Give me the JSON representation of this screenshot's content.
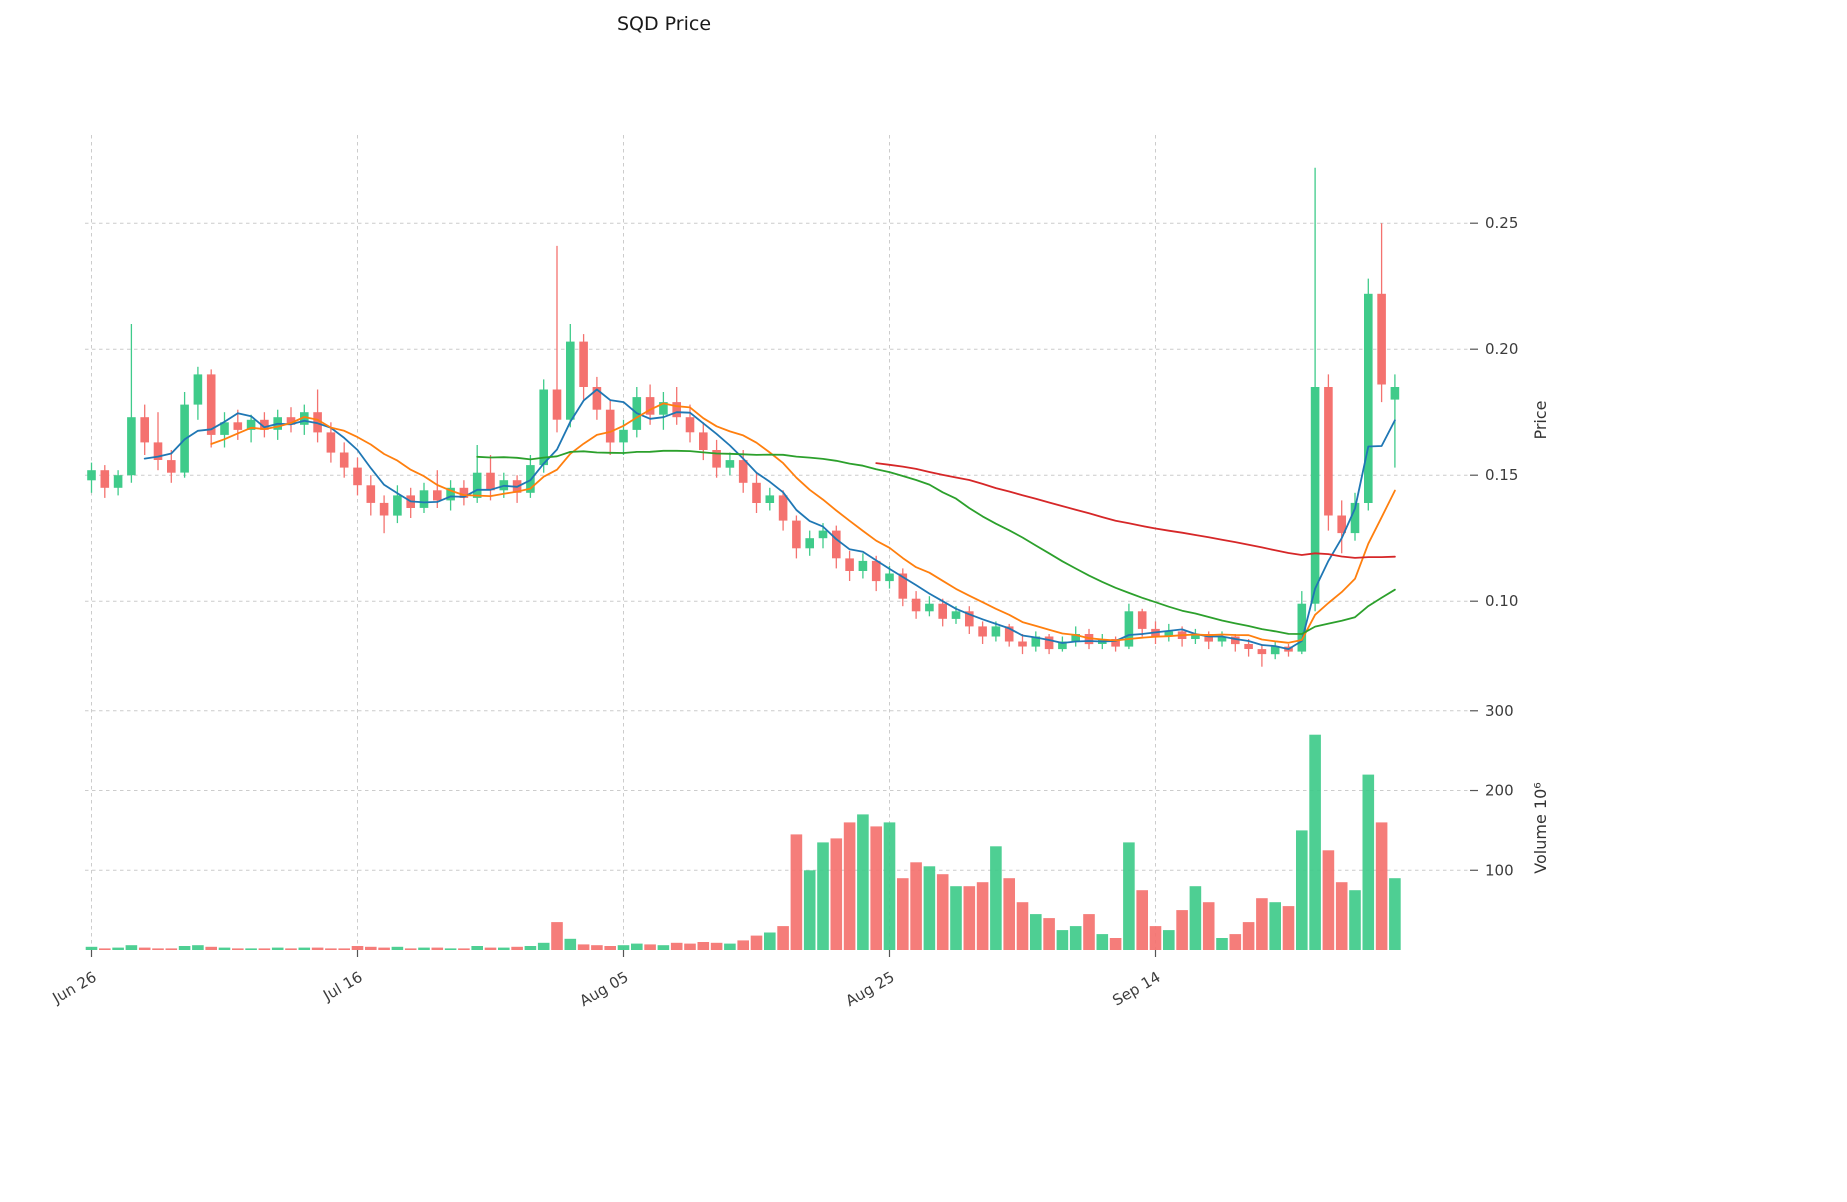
{
  "chart_data": {
    "type": "candlestick",
    "title": "SQD Price",
    "ylabel_price": "Price",
    "ylabel_volume": "Volume  10⁶",
    "volume_units": "millions",
    "grid": "dashed",
    "legend": "none",
    "up_color": "#3fcb8a",
    "down_color": "#f4726f",
    "price_ylim": [
      0.06,
      0.285
    ],
    "volume_ylim": [
      0,
      306
    ],
    "price_ticks": [
      {
        "value": 0.1,
        "label": "0.10"
      },
      {
        "value": 0.15,
        "label": "0.15"
      },
      {
        "value": 0.2,
        "label": "0.20"
      },
      {
        "value": 0.25,
        "label": "0.25"
      }
    ],
    "volume_ticks": [
      {
        "value": 100,
        "label": "100"
      },
      {
        "value": 200,
        "label": "200"
      },
      {
        "value": 300,
        "label": "300"
      }
    ],
    "x_ticks": [
      {
        "index": 0,
        "label": "Jun 26"
      },
      {
        "index": 20,
        "label": "Jul 16"
      },
      {
        "index": 40,
        "label": "Aug 05"
      },
      {
        "index": 60,
        "label": "Aug 25"
      },
      {
        "index": 80,
        "label": "Sep 14"
      }
    ],
    "ma_lines": [
      {
        "period": 5,
        "color": "#1f77b4"
      },
      {
        "period": 10,
        "color": "#ff7f0e"
      },
      {
        "period": 30,
        "color": "#2ca02c"
      },
      {
        "period": 60,
        "color": "#d62728"
      }
    ],
    "columns": [
      "open",
      "high",
      "low",
      "close"
    ],
    "candles": [
      [
        0.148,
        0.155,
        0.143,
        0.152
      ],
      [
        0.152,
        0.154,
        0.141,
        0.145
      ],
      [
        0.145,
        0.152,
        0.142,
        0.15
      ],
      [
        0.15,
        0.21,
        0.147,
        0.173
      ],
      [
        0.173,
        0.178,
        0.158,
        0.163
      ],
      [
        0.163,
        0.175,
        0.152,
        0.156
      ],
      [
        0.156,
        0.16,
        0.147,
        0.151
      ],
      [
        0.151,
        0.183,
        0.149,
        0.178
      ],
      [
        0.178,
        0.193,
        0.172,
        0.19
      ],
      [
        0.19,
        0.192,
        0.161,
        0.166
      ],
      [
        0.166,
        0.175,
        0.161,
        0.171
      ],
      [
        0.171,
        0.176,
        0.164,
        0.168
      ],
      [
        0.168,
        0.174,
        0.163,
        0.172
      ],
      [
        0.172,
        0.175,
        0.165,
        0.168
      ],
      [
        0.168,
        0.176,
        0.164,
        0.173
      ],
      [
        0.173,
        0.177,
        0.167,
        0.17
      ],
      [
        0.17,
        0.178,
        0.166,
        0.175
      ],
      [
        0.175,
        0.184,
        0.163,
        0.167
      ],
      [
        0.167,
        0.171,
        0.155,
        0.159
      ],
      [
        0.159,
        0.163,
        0.149,
        0.153
      ],
      [
        0.153,
        0.157,
        0.142,
        0.146
      ],
      [
        0.146,
        0.15,
        0.134,
        0.139
      ],
      [
        0.139,
        0.142,
        0.127,
        0.134
      ],
      [
        0.134,
        0.146,
        0.131,
        0.142
      ],
      [
        0.142,
        0.145,
        0.133,
        0.137
      ],
      [
        0.137,
        0.147,
        0.135,
        0.144
      ],
      [
        0.144,
        0.152,
        0.137,
        0.14
      ],
      [
        0.14,
        0.148,
        0.136,
        0.145
      ],
      [
        0.145,
        0.148,
        0.138,
        0.141
      ],
      [
        0.141,
        0.162,
        0.139,
        0.151
      ],
      [
        0.151,
        0.158,
        0.14,
        0.144
      ],
      [
        0.144,
        0.151,
        0.141,
        0.148
      ],
      [
        0.148,
        0.15,
        0.139,
        0.143
      ],
      [
        0.143,
        0.158,
        0.141,
        0.154
      ],
      [
        0.154,
        0.188,
        0.151,
        0.184
      ],
      [
        0.184,
        0.241,
        0.167,
        0.172
      ],
      [
        0.172,
        0.21,
        0.169,
        0.203
      ],
      [
        0.203,
        0.206,
        0.18,
        0.185
      ],
      [
        0.185,
        0.189,
        0.172,
        0.176
      ],
      [
        0.176,
        0.18,
        0.158,
        0.163
      ],
      [
        0.163,
        0.172,
        0.158,
        0.168
      ],
      [
        0.168,
        0.185,
        0.165,
        0.181
      ],
      [
        0.181,
        0.186,
        0.17,
        0.174
      ],
      [
        0.174,
        0.183,
        0.168,
        0.179
      ],
      [
        0.179,
        0.185,
        0.17,
        0.173
      ],
      [
        0.173,
        0.178,
        0.163,
        0.167
      ],
      [
        0.167,
        0.171,
        0.156,
        0.16
      ],
      [
        0.16,
        0.164,
        0.149,
        0.153
      ],
      [
        0.153,
        0.159,
        0.15,
        0.156
      ],
      [
        0.156,
        0.16,
        0.143,
        0.147
      ],
      [
        0.147,
        0.151,
        0.135,
        0.139
      ],
      [
        0.139,
        0.145,
        0.136,
        0.142
      ],
      [
        0.142,
        0.144,
        0.128,
        0.132
      ],
      [
        0.132,
        0.134,
        0.117,
        0.121
      ],
      [
        0.121,
        0.128,
        0.118,
        0.125
      ],
      [
        0.125,
        0.131,
        0.121,
        0.128
      ],
      [
        0.128,
        0.13,
        0.113,
        0.117
      ],
      [
        0.117,
        0.12,
        0.108,
        0.112
      ],
      [
        0.112,
        0.119,
        0.109,
        0.116
      ],
      [
        0.116,
        0.118,
        0.104,
        0.108
      ],
      [
        0.108,
        0.114,
        0.105,
        0.111
      ],
      [
        0.111,
        0.113,
        0.098,
        0.101
      ],
      [
        0.101,
        0.104,
        0.093,
        0.096
      ],
      [
        0.096,
        0.102,
        0.094,
        0.099
      ],
      [
        0.099,
        0.101,
        0.09,
        0.093
      ],
      [
        0.093,
        0.098,
        0.091,
        0.096
      ],
      [
        0.096,
        0.098,
        0.087,
        0.09
      ],
      [
        0.09,
        0.092,
        0.083,
        0.086
      ],
      [
        0.086,
        0.092,
        0.084,
        0.09
      ],
      [
        0.09,
        0.091,
        0.082,
        0.084
      ],
      [
        0.084,
        0.087,
        0.079,
        0.082
      ],
      [
        0.082,
        0.088,
        0.08,
        0.086
      ],
      [
        0.086,
        0.087,
        0.079,
        0.081
      ],
      [
        0.081,
        0.086,
        0.08,
        0.084
      ],
      [
        0.084,
        0.09,
        0.082,
        0.087
      ],
      [
        0.087,
        0.089,
        0.081,
        0.083
      ],
      [
        0.083,
        0.087,
        0.081,
        0.085
      ],
      [
        0.085,
        0.086,
        0.08,
        0.082
      ],
      [
        0.082,
        0.099,
        0.081,
        0.096
      ],
      [
        0.096,
        0.097,
        0.086,
        0.089
      ],
      [
        0.089,
        0.092,
        0.083,
        0.086
      ],
      [
        0.086,
        0.091,
        0.084,
        0.088
      ],
      [
        0.088,
        0.09,
        0.082,
        0.085
      ],
      [
        0.085,
        0.089,
        0.083,
        0.087
      ],
      [
        0.087,
        0.088,
        0.081,
        0.084
      ],
      [
        0.084,
        0.088,
        0.082,
        0.086
      ],
      [
        0.086,
        0.087,
        0.08,
        0.083
      ],
      [
        0.083,
        0.085,
        0.078,
        0.081
      ],
      [
        0.081,
        0.083,
        0.074,
        0.079
      ],
      [
        0.079,
        0.084,
        0.077,
        0.082
      ],
      [
        0.082,
        0.083,
        0.078,
        0.08
      ],
      [
        0.08,
        0.104,
        0.079,
        0.099
      ],
      [
        0.099,
        0.272,
        0.096,
        0.185
      ],
      [
        0.185,
        0.19,
        0.128,
        0.134
      ],
      [
        0.134,
        0.14,
        0.119,
        0.127
      ],
      [
        0.127,
        0.143,
        0.124,
        0.139
      ],
      [
        0.139,
        0.228,
        0.136,
        0.222
      ],
      [
        0.222,
        0.25,
        0.179,
        0.186
      ],
      [
        0.18,
        0.19,
        0.153,
        0.185
      ]
    ],
    "volume": [
      4,
      2,
      3,
      6,
      3,
      2,
      2,
      5,
      6,
      4,
      3,
      2,
      2,
      2,
      3,
      2,
      3,
      3,
      2,
      2,
      5,
      4,
      3,
      4,
      2,
      3,
      3,
      2,
      2,
      5,
      3,
      3,
      4,
      5,
      9,
      35,
      14,
      7,
      6,
      5,
      6,
      8,
      7,
      6,
      9,
      8,
      10,
      9,
      8,
      12,
      18,
      22,
      30,
      145,
      100,
      135,
      140,
      160,
      170,
      155,
      160,
      90,
      110,
      105,
      95,
      80,
      80,
      85,
      130,
      90,
      60,
      45,
      40,
      25,
      30,
      45,
      20,
      15,
      135,
      75,
      30,
      25,
      50,
      80,
      60,
      15,
      20,
      35,
      65,
      60,
      55,
      150,
      270,
      125,
      85,
      75,
      220,
      160,
      90
    ]
  }
}
